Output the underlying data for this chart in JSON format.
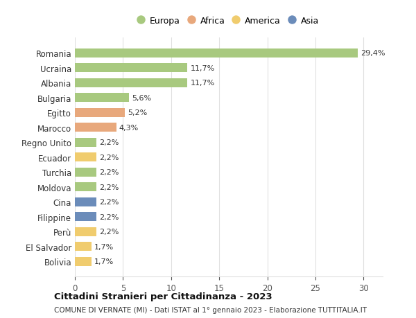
{
  "countries": [
    "Romania",
    "Ucraina",
    "Albania",
    "Bulgaria",
    "Egitto",
    "Marocco",
    "Regno Unito",
    "Ecuador",
    "Turchia",
    "Moldova",
    "Cina",
    "Filippine",
    "Perù",
    "El Salvador",
    "Bolivia"
  ],
  "values": [
    29.4,
    11.7,
    11.7,
    5.6,
    5.2,
    4.3,
    2.2,
    2.2,
    2.2,
    2.2,
    2.2,
    2.2,
    2.2,
    1.7,
    1.7
  ],
  "labels": [
    "29,4%",
    "11,7%",
    "11,7%",
    "5,6%",
    "5,2%",
    "4,3%",
    "2,2%",
    "2,2%",
    "2,2%",
    "2,2%",
    "2,2%",
    "2,2%",
    "2,2%",
    "1,7%",
    "1,7%"
  ],
  "continents": [
    "Europa",
    "Europa",
    "Europa",
    "Europa",
    "Africa",
    "Africa",
    "Europa",
    "America",
    "Europa",
    "Europa",
    "Asia",
    "Asia",
    "America",
    "America",
    "America"
  ],
  "colors": {
    "Europa": "#a8c97f",
    "Africa": "#e8a87c",
    "America": "#f0cc6e",
    "Asia": "#6b8cba"
  },
  "legend_order": [
    "Europa",
    "Africa",
    "America",
    "Asia"
  ],
  "title": "Cittadini Stranieri per Cittadinanza - 2023",
  "subtitle": "COMUNE DI VERNATE (MI) - Dati ISTAT al 1° gennaio 2023 - Elaborazione TUTTITALIA.IT",
  "xlim": [
    0,
    32
  ],
  "xticks": [
    0,
    5,
    10,
    15,
    20,
    25,
    30
  ],
  "background_color": "#ffffff",
  "grid_color": "#e0e0e0"
}
